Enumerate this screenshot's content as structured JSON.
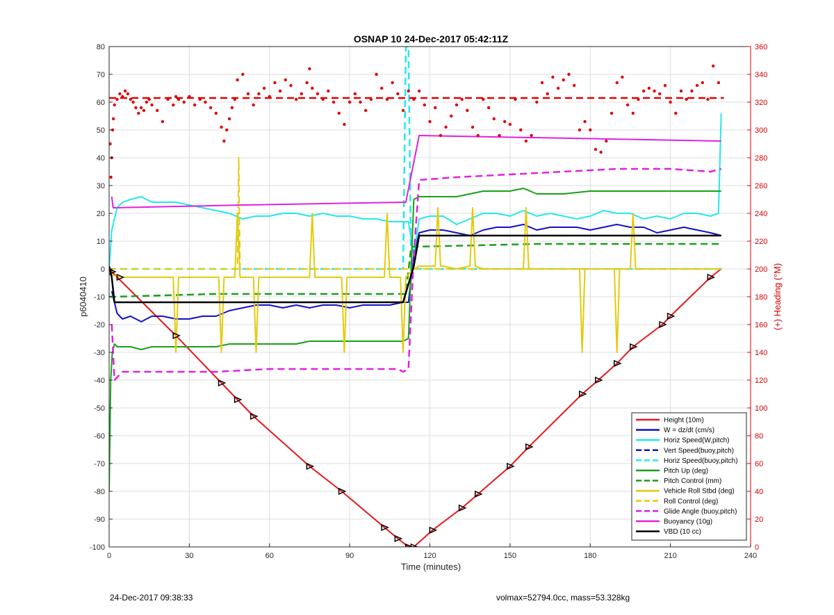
{
  "footer": {
    "timestamp": "24-Dec-2017 09:38:33",
    "vehicle_info": "volmax=52794.0cc, mass=53.328kg"
  },
  "chart_data": {
    "type": "line",
    "title": "OSNAP 10 24-Dec-2017 05:42:11Z",
    "xlabel": "Time (minutes)",
    "ylabel": "p6040410",
    "y2label": "(+) Heading (°M)",
    "xlim": [
      0,
      240
    ],
    "ylim": [
      -100,
      80
    ],
    "y2lim": [
      0,
      360
    ],
    "x_ticks": [
      0,
      30,
      60,
      90,
      120,
      150,
      180,
      210,
      240
    ],
    "y_ticks": [
      -100,
      -90,
      -80,
      -70,
      -60,
      -50,
      -40,
      -30,
      -20,
      -10,
      0,
      10,
      20,
      30,
      40,
      50,
      60,
      70,
      80
    ],
    "y2_ticks": [
      0,
      20,
      40,
      60,
      80,
      100,
      120,
      140,
      160,
      180,
      200,
      220,
      240,
      260,
      280,
      300,
      320,
      340,
      360
    ],
    "grid": true,
    "legend_position": "bottom-right",
    "colors": {
      "red": "#e8161a",
      "blue": "#1010c8",
      "cyan": "#22e8ee",
      "green": "#18a018",
      "yellow": "#e4ca0a",
      "magenta": "#e020e0",
      "black": "#000000",
      "heading": "#e00000"
    },
    "legend": [
      {
        "label": "Height (10m)",
        "color": "red",
        "dash": false
      },
      {
        "label": "W = dz/dt (cm/s)",
        "color": "blue",
        "dash": false
      },
      {
        "label": "Horiz Speed(W,pitch)",
        "color": "cyan",
        "dash": false
      },
      {
        "label": "Vert Speed(buoy,pitch)",
        "color": "blue",
        "dash": true
      },
      {
        "label": "Horiz Speed(buoy,pitch)",
        "color": "cyan",
        "dash": true
      },
      {
        "label": "Pitch Up (deg)",
        "color": "green",
        "dash": false
      },
      {
        "label": "Pitch Control (mm)",
        "color": "green",
        "dash": true
      },
      {
        "label": "Vehicle Roll Stbd (deg)",
        "color": "yellow",
        "dash": false
      },
      {
        "label": "Roll Control (deg)",
        "color": "yellow",
        "dash": true
      },
      {
        "label": "Glide Angle (buoy,pitch)",
        "color": "magenta",
        "dash": true
      },
      {
        "label": "Buoyancy (10g)",
        "color": "magenta",
        "dash": false
      },
      {
        "label": "VBD (10 cc)",
        "color": "black",
        "dash": false
      }
    ],
    "series": [
      {
        "name": "Height (10m)",
        "color": "red",
        "dash": false,
        "width": 2,
        "x": [
          0,
          2,
          25,
          42,
          48,
          54,
          75,
          87,
          103,
          108,
          112,
          114,
          121,
          132,
          138,
          150,
          157,
          177,
          183,
          190,
          196,
          207,
          210,
          225,
          229
        ],
        "y": [
          0,
          -2,
          -24,
          -41,
          -47,
          -53,
          -71,
          -80,
          -93,
          -97,
          -100,
          -100,
          -94,
          -86,
          -81,
          -71,
          -64,
          -45,
          -40,
          -34,
          -28,
          -20,
          -17,
          -3,
          0
        ]
      },
      {
        "name": "W = dz/dt (cm/s)",
        "color": "blue",
        "dash": false,
        "width": 2,
        "x": [
          1,
          3,
          5,
          8,
          12,
          16,
          20,
          25,
          30,
          35,
          40,
          45,
          50,
          55,
          60,
          65,
          70,
          75,
          80,
          85,
          90,
          95,
          100,
          105,
          110,
          112,
          114,
          116,
          120,
          125,
          130,
          135,
          140,
          145,
          150,
          155,
          160,
          165,
          170,
          175,
          180,
          185,
          190,
          195,
          200,
          205,
          210,
          215,
          220,
          225,
          229
        ],
        "y": [
          -8,
          -16,
          -18,
          -17,
          -19,
          -17,
          -17,
          -18,
          -18,
          -17,
          -17,
          -15,
          -14,
          -13,
          -13,
          -14,
          -13,
          -14,
          -13,
          -13,
          -14,
          -13,
          -13,
          -13,
          -12,
          -12,
          5,
          13,
          14,
          14,
          13,
          12,
          14,
          15,
          15,
          16,
          14,
          15,
          15,
          15,
          14,
          15,
          16,
          15,
          15,
          13,
          14,
          15,
          14,
          13,
          12
        ]
      },
      {
        "name": "Horiz Speed(W,pitch)",
        "color": "cyan",
        "dash": false,
        "width": 2,
        "x": [
          0,
          1,
          3,
          5,
          8,
          12,
          16,
          20,
          25,
          30,
          35,
          40,
          45,
          50,
          55,
          60,
          65,
          70,
          75,
          80,
          85,
          90,
          95,
          100,
          105,
          110,
          112,
          114,
          116,
          120,
          125,
          130,
          135,
          140,
          145,
          150,
          155,
          160,
          165,
          170,
          175,
          180,
          185,
          190,
          195,
          200,
          205,
          210,
          215,
          220,
          225,
          228,
          229
        ],
        "y": [
          0,
          14,
          22,
          24,
          25,
          26,
          24,
          24,
          24,
          23,
          22,
          21,
          20,
          18,
          19,
          19,
          20,
          20,
          19,
          20,
          19,
          19,
          18,
          18,
          17,
          17,
          17,
          5,
          18,
          19,
          19,
          16,
          18,
          20,
          20,
          19,
          21,
          19,
          20,
          19,
          18,
          19,
          21,
          20,
          20,
          18,
          19,
          18,
          20,
          20,
          19,
          20,
          56
        ]
      },
      {
        "name": "Horiz Speed(buoy,pitch)",
        "color": "cyan",
        "dash": true,
        "width": 2.5,
        "x": [
          0,
          110,
          111,
          112,
          113,
          230
        ],
        "y": [
          0,
          0,
          80,
          80,
          0,
          0
        ]
      },
      {
        "name": "Pitch Up (deg)",
        "color": "green",
        "dash": false,
        "width": 2,
        "x": [
          0,
          0.6,
          1.2,
          2,
          3,
          8,
          12,
          16,
          20,
          25,
          30,
          35,
          40,
          45,
          50,
          55,
          60,
          65,
          70,
          75,
          80,
          85,
          90,
          95,
          100,
          105,
          110,
          112,
          114,
          116,
          120,
          130,
          135,
          140,
          150,
          155,
          160,
          170,
          180,
          190,
          200,
          210,
          220,
          225,
          229
        ],
        "y": [
          -80,
          -40,
          -30,
          -27,
          -28,
          -28,
          -29,
          -28,
          -28,
          -28,
          -28,
          -28,
          -28,
          -27,
          -27,
          -27,
          -27,
          -27,
          -27,
          -26,
          -26,
          -26,
          -26,
          -26,
          -26,
          -26,
          -26,
          -25,
          25,
          26,
          26,
          26,
          27,
          28,
          28,
          29,
          27,
          27,
          28,
          28,
          28,
          28,
          28,
          28,
          28
        ]
      },
      {
        "name": "Pitch Control (mm)",
        "color": "green",
        "dash": true,
        "width": 2.5,
        "x": [
          0,
          2,
          40,
          111,
          113,
          115,
          160,
          229
        ],
        "y": [
          -10,
          -10,
          -9,
          -9,
          8,
          8,
          9,
          9
        ]
      },
      {
        "name": "Vehicle Roll Stbd (deg)",
        "color": "yellow",
        "dash": false,
        "width": 2,
        "x": [
          0,
          5,
          24,
          25,
          26,
          30,
          41,
          42,
          43,
          47,
          48,
          49,
          54,
          55,
          56,
          75,
          76,
          77,
          87,
          88,
          89,
          103,
          104,
          105,
          109,
          110,
          111,
          112,
          114,
          116,
          120,
          122,
          123,
          124,
          125,
          130,
          135,
          136,
          137,
          140,
          150,
          155,
          156,
          157,
          160,
          176,
          177,
          178,
          189,
          190,
          191,
          195,
          196,
          197,
          207,
          209,
          210,
          225,
          228,
          229
        ],
        "y": [
          -2,
          -3,
          -3,
          -30,
          -3,
          -3,
          -3,
          -30,
          -3,
          -3,
          20,
          -3,
          -3,
          -30,
          -3,
          -3,
          20,
          -3,
          -3,
          -30,
          -3,
          -3,
          20,
          -3,
          -3,
          -30,
          -3,
          -2,
          0,
          1,
          1,
          1,
          22,
          1,
          1,
          0,
          1,
          22,
          1,
          0,
          0,
          0,
          22,
          0,
          0,
          0,
          -30,
          0,
          0,
          -30,
          0,
          0,
          20,
          0,
          0,
          0,
          0,
          0,
          0,
          0
        ]
      },
      {
        "name": "Roll Control (deg)",
        "color": "yellow",
        "dash": true,
        "width": 2,
        "x": [
          0,
          2,
          48,
          48.5,
          49,
          60,
          120,
          229
        ],
        "y": [
          0,
          0,
          0,
          40,
          0,
          0,
          0,
          0
        ]
      },
      {
        "name": "Glide Angle (buoy,pitch)",
        "color": "magenta",
        "dash": true,
        "width": 2.5,
        "x": [
          1,
          2,
          5,
          20,
          40,
          60,
          80,
          100,
          108,
          110,
          112,
          114,
          116,
          130,
          150,
          170,
          190,
          210,
          225,
          229
        ],
        "y": [
          -20,
          -40,
          -37,
          -37,
          -37,
          -36,
          -36,
          -36,
          -36,
          -37,
          -36,
          5,
          32,
          33,
          34,
          35,
          36,
          36,
          35,
          36
        ]
      },
      {
        "name": "Buoyancy (10g)",
        "color": "magenta",
        "dash": false,
        "width": 2,
        "x": [
          1,
          1.5,
          2,
          50,
          111,
          116,
          229
        ],
        "y": [
          26,
          22,
          22,
          23,
          24,
          48,
          46
        ]
      },
      {
        "name": "VBD (10 cc)",
        "color": "black",
        "dash": false,
        "width": 2.5,
        "x": [
          0,
          1,
          2,
          110,
          114,
          116,
          229
        ],
        "y": [
          1,
          -3,
          -12,
          -12,
          1,
          12,
          12
        ]
      },
      {
        "name": "Heading",
        "color": "heading",
        "dash": true,
        "width": 2.5,
        "axis": "right",
        "x": [
          0,
          230
        ],
        "y": [
          323,
          323
        ]
      }
    ],
    "heading_points": {
      "color": "heading",
      "x": [
        0.4,
        0.7,
        1.0,
        1.3,
        1.6,
        2,
        3,
        4,
        5,
        6,
        7,
        8,
        9,
        10,
        11,
        12,
        13,
        14,
        15,
        16,
        18,
        20,
        22,
        24,
        25,
        26,
        28,
        30,
        32,
        34,
        36,
        38,
        40,
        42,
        43,
        44,
        45,
        46,
        47,
        48,
        50,
        52,
        54,
        56,
        58,
        60,
        62,
        64,
        66,
        68,
        70,
        72,
        74,
        75,
        76,
        78,
        80,
        82,
        84,
        86,
        88,
        90,
        92,
        94,
        96,
        98,
        100,
        102,
        104,
        106,
        108,
        110,
        112,
        114,
        116,
        118,
        120,
        122,
        124,
        126,
        128,
        130,
        132,
        134,
        136,
        138,
        140,
        142,
        144,
        146,
        148,
        150,
        152,
        154,
        156,
        158,
        160,
        162,
        164,
        166,
        168,
        170,
        172,
        174,
        176,
        178,
        180,
        182,
        184,
        186,
        188,
        190,
        192,
        194,
        196,
        198,
        200,
        202,
        204,
        206,
        208,
        210,
        212,
        214,
        216,
        218,
        220,
        222,
        224,
        226,
        228
      ],
      "y": [
        290,
        266,
        280,
        300,
        308,
        318,
        322,
        326,
        324,
        328,
        326,
        322,
        320,
        316,
        312,
        316,
        314,
        320,
        322,
        318,
        314,
        306,
        322,
        318,
        324,
        322,
        320,
        324,
        318,
        322,
        320,
        316,
        312,
        302,
        292,
        300,
        308,
        316,
        322,
        336,
        340,
        326,
        318,
        326,
        330,
        324,
        334,
        328,
        336,
        332,
        322,
        326,
        334,
        344,
        330,
        326,
        322,
        328,
        320,
        312,
        304,
        320,
        326,
        320,
        314,
        322,
        340,
        330,
        322,
        334,
        326,
        314,
        328,
        322,
        328,
        318,
        306,
        316,
        296,
        302,
        310,
        318,
        322,
        314,
        302,
        296,
        322,
        316,
        308,
        296,
        306,
        304,
        322,
        300,
        292,
        296,
        320,
        334,
        326,
        338,
        330,
        336,
        340,
        332,
        300,
        306,
        300,
        286,
        284,
        292,
        312,
        334,
        338,
        318,
        312,
        322,
        328,
        330,
        328,
        326,
        332,
        320,
        312,
        328,
        322,
        328,
        332,
        334,
        322,
        346,
        334
      ]
    },
    "height_markers": {
      "x": [
        1,
        4,
        25,
        42,
        48,
        54,
        75,
        87,
        103,
        108,
        112,
        114,
        121,
        132,
        138,
        150,
        157,
        177,
        183,
        190,
        196,
        207,
        210,
        225
      ],
      "y": [
        -1,
        -3,
        -24,
        -41,
        -47,
        -53,
        -71,
        -80,
        -93,
        -97,
        -100,
        -100,
        -94,
        -86,
        -81,
        -71,
        -64,
        -45,
        -40,
        -34,
        -28,
        -20,
        -17,
        -3
      ]
    }
  }
}
